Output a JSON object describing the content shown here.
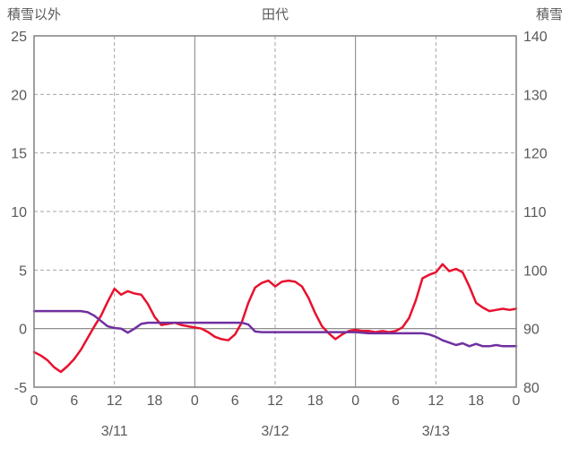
{
  "chart_data": {
    "type": "line",
    "title": "田代",
    "x": {
      "unit": "hour",
      "range": [
        0,
        72
      ],
      "ticks": [
        0,
        6,
        12,
        18,
        24,
        30,
        36,
        42,
        48,
        54,
        60,
        66,
        72
      ],
      "tick_labels": [
        "0",
        "6",
        "12",
        "18",
        "0",
        "6",
        "12",
        "18",
        "0",
        "6",
        "12",
        "18",
        "0"
      ],
      "date_labels": [
        {
          "label": "3/11",
          "hour": 12
        },
        {
          "label": "3/12",
          "hour": 36
        },
        {
          "label": "3/13",
          "hour": 60
        }
      ],
      "solid_gridlines_at": [
        24,
        48
      ],
      "dashed_gridlines_at": [
        12,
        36,
        60
      ]
    },
    "left_axis": {
      "title": "積雪以外",
      "min": -5,
      "max": 25,
      "ticks": [
        25,
        20,
        15,
        10,
        5,
        0,
        -5
      ],
      "zero_line": 0,
      "dashed_gridlines_at": [
        20,
        15,
        10,
        5
      ]
    },
    "right_axis": {
      "title": "積雪",
      "min": 80,
      "max": 140,
      "ticks": [
        140,
        130,
        120,
        110,
        100,
        90,
        80
      ]
    },
    "series": [
      {
        "name": "積雪以外",
        "axis": "left",
        "color": "#e8112d",
        "x_start": 0,
        "x_step": 1,
        "values": [
          -2.0,
          -2.3,
          -2.7,
          -3.3,
          -3.7,
          -3.2,
          -2.6,
          -1.8,
          -0.8,
          0.2,
          1.1,
          2.3,
          3.4,
          2.9,
          3.2,
          3.0,
          2.9,
          2.1,
          1.0,
          0.3,
          0.4,
          0.5,
          0.3,
          0.2,
          0.1,
          0.0,
          -0.3,
          -0.7,
          -0.9,
          -1.0,
          -0.5,
          0.5,
          2.2,
          3.5,
          3.9,
          4.1,
          3.6,
          4.0,
          4.1,
          4.0,
          3.6,
          2.6,
          1.3,
          0.2,
          -0.4,
          -0.9,
          -0.5,
          -0.2,
          -0.1,
          -0.2,
          -0.2,
          -0.3,
          -0.2,
          -0.3,
          -0.2,
          0.1,
          0.9,
          2.4,
          4.3,
          4.6,
          4.8,
          5.5,
          4.9,
          5.1,
          4.8,
          3.6,
          2.2,
          1.8,
          1.5,
          1.6,
          1.7,
          1.6,
          1.7
        ]
      },
      {
        "name": "積雪",
        "axis": "right",
        "color": "#7030a0",
        "x_start": 0,
        "x_step": 1,
        "values": [
          93,
          93,
          93,
          93,
          93,
          93,
          93,
          93,
          92.8,
          92.2,
          91.3,
          90.4,
          90.1,
          90,
          89.3,
          90,
          90.8,
          91,
          91,
          91,
          91,
          91,
          91,
          91,
          91,
          91,
          91,
          91,
          91,
          91,
          91,
          91,
          90.7,
          89.5,
          89.4,
          89.4,
          89.4,
          89.4,
          89.4,
          89.4,
          89.4,
          89.4,
          89.4,
          89.4,
          89.4,
          89.4,
          89.4,
          89.4,
          89.4,
          89.3,
          89.2,
          89.2,
          89.2,
          89.2,
          89.2,
          89.2,
          89.2,
          89.2,
          89.2,
          89,
          88.6,
          88,
          87.6,
          87.2,
          87.5,
          87,
          87.4,
          87,
          87,
          87.2,
          87,
          87,
          87
        ]
      }
    ],
    "colors": {
      "background": "#ffffff",
      "border": "#808080",
      "grid_dashed": "#a6a6a6",
      "grid_solid": "#808080",
      "zero_line": "#7f7f7f",
      "text": "#595959",
      "red_series": "#e8112d",
      "purple_series": "#7030a0"
    }
  }
}
